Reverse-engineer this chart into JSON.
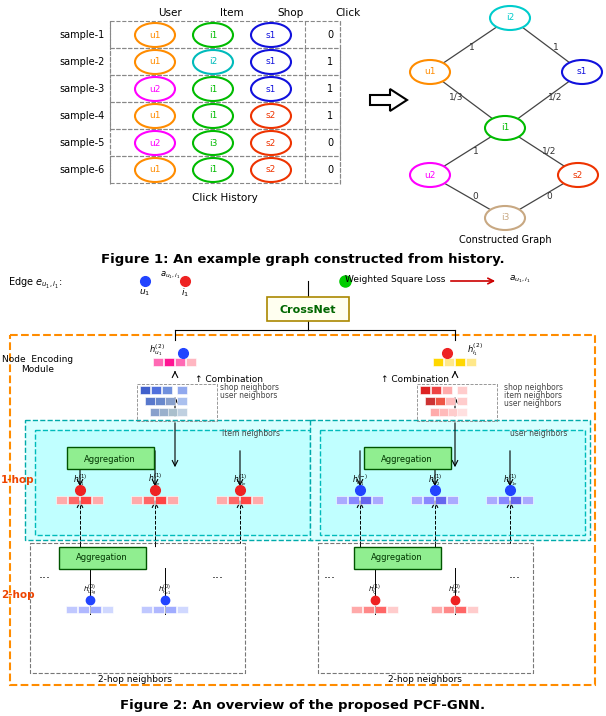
{
  "fig_width": 6.06,
  "fig_height": 7.16,
  "dpi": 100,
  "bg_color": "#ffffff",
  "caption1": "Figure 1: An example graph constructed from history.",
  "caption2": "Figure 2: An overview of the proposed PCF-GNN.",
  "table_rows": [
    "sample-1",
    "sample-2",
    "sample-3",
    "sample-4",
    "sample-5",
    "sample-6"
  ],
  "table_data": [
    [
      "u1",
      "i1",
      "s1",
      "0"
    ],
    [
      "u1",
      "i2",
      "s1",
      "1"
    ],
    [
      "u2",
      "i1",
      "s1",
      "1"
    ],
    [
      "u1",
      "i1",
      "s2",
      "1"
    ],
    [
      "u2",
      "i3",
      "s2",
      "0"
    ],
    [
      "u1",
      "i1",
      "s2",
      "0"
    ]
  ],
  "user_colors": [
    "#FF8C00",
    "#FF8C00",
    "#FF00FF",
    "#FF8C00",
    "#FF00FF",
    "#FF8C00"
  ],
  "item_colors": [
    "#00BB00",
    "#00BBBB",
    "#00BB00",
    "#00BB00",
    "#00BB00",
    "#00BB00"
  ],
  "shop_colors": [
    "#1111DD",
    "#1111DD",
    "#1111DD",
    "#EE3300",
    "#EE3300",
    "#EE3300"
  ],
  "graph_node_colors": {
    "i2": "#00CCCC",
    "u1": "#FF8C00",
    "s1": "#1111DD",
    "i1": "#00BB00",
    "u2": "#FF00FF",
    "s2": "#EE3300",
    "i3": "#C8A882"
  }
}
